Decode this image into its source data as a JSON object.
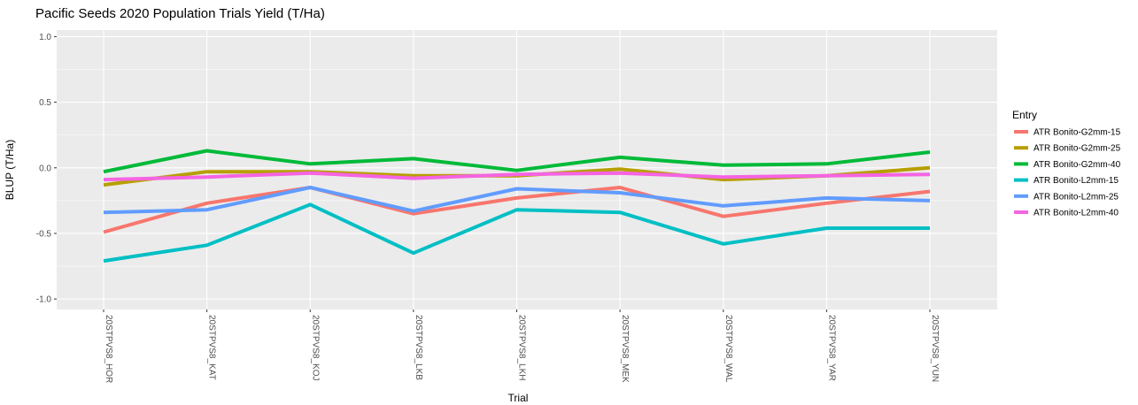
{
  "chart_data": {
    "type": "line",
    "title": "Pacific Seeds 2020 Population Trials Yield (T/Ha)",
    "xlabel": "Trial",
    "ylabel": "BLUP (T/Ha)",
    "ylim": [
      -1.08,
      1.05
    ],
    "yticks": [
      "1.0",
      "0.5",
      "0.0",
      "-0.5",
      "-1.0"
    ],
    "ytick_values": [
      1.0,
      0.5,
      0.0,
      -0.5,
      -1.0
    ],
    "grid": true,
    "legend_position": "right",
    "legend_title": "Entry",
    "categories": [
      "20STPVS8_HOR",
      "20STPVS8_KAT",
      "20STPVS8_KOJ",
      "20STPVS8_LKB",
      "20STPVS8_LKH",
      "20STPVS8_MEK",
      "20STPVS8_WAL",
      "20STPVS8_YAR",
      "20STPVS8_YUN"
    ],
    "series": [
      {
        "name": "ATR Bonito-G2mm-15",
        "color": "#F8766D",
        "values": [
          -0.49,
          -0.27,
          -0.15,
          -0.35,
          -0.23,
          -0.15,
          -0.37,
          -0.27,
          -0.18
        ]
      },
      {
        "name": "ATR Bonito-G2mm-25",
        "color": "#B79F00",
        "values": [
          -0.13,
          -0.03,
          -0.03,
          -0.06,
          -0.06,
          -0.01,
          -0.09,
          -0.06,
          0.0
        ]
      },
      {
        "name": "ATR Bonito-G2mm-40",
        "color": "#00BA38",
        "values": [
          -0.03,
          0.13,
          0.03,
          0.07,
          -0.02,
          0.08,
          0.02,
          0.03,
          0.12
        ]
      },
      {
        "name": "ATR Bonito-L2mm-15",
        "color": "#00BFC4",
        "values": [
          -0.71,
          -0.59,
          -0.28,
          -0.65,
          -0.32,
          -0.34,
          -0.58,
          -0.46,
          -0.46
        ]
      },
      {
        "name": "ATR Bonito-L2mm-25",
        "color": "#619CFF",
        "values": [
          -0.34,
          -0.32,
          -0.15,
          -0.33,
          -0.16,
          -0.19,
          -0.29,
          -0.23,
          -0.25
        ]
      },
      {
        "name": "ATR Bonito-L2mm-40",
        "color": "#F564E3",
        "values": [
          -0.09,
          -0.07,
          -0.04,
          -0.08,
          -0.05,
          -0.04,
          -0.07,
          -0.06,
          -0.05
        ]
      }
    ]
  }
}
